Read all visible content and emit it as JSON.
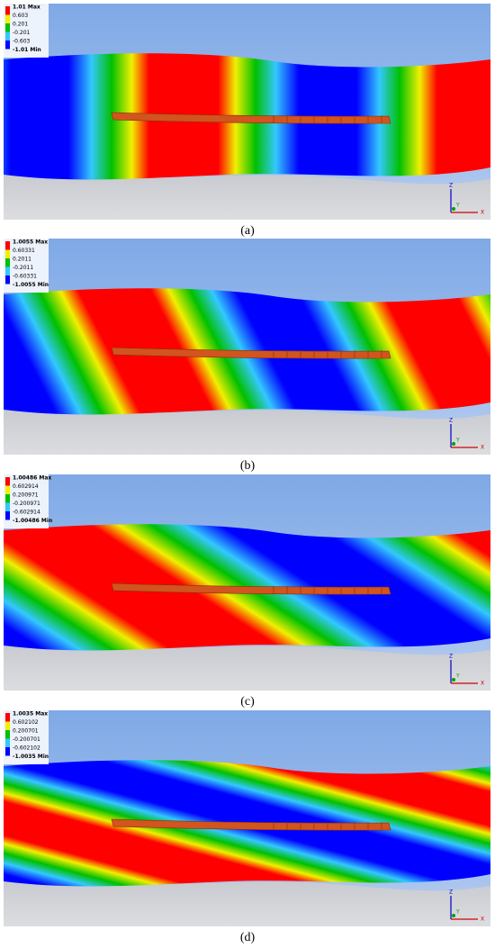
{
  "axis_labels": [
    "Z",
    "Y",
    "X"
  ],
  "panels": [
    {
      "legend": [
        "1.01 Max",
        "0.603",
        "0.201",
        "-0.201",
        "-0.603",
        "-1.01 Min"
      ],
      "caption": "(a)"
    },
    {
      "legend": [
        "1.0055 Max",
        "0.60331",
        "0.2011",
        "-0.2011",
        "-0.60331",
        "-1.0055 Min"
      ],
      "caption": "(b)"
    },
    {
      "legend": [
        "1.00486 Max",
        "0.602914",
        "0.200971",
        "-0.200971",
        "-0.602914",
        "-1.00486 Min"
      ],
      "caption": "(c)"
    },
    {
      "legend": [
        "1.0035 Max",
        "0.602102",
        "0.200701",
        "-0.200701",
        "-0.602102",
        "-1.0035 Min"
      ],
      "caption": "(d)"
    }
  ]
}
